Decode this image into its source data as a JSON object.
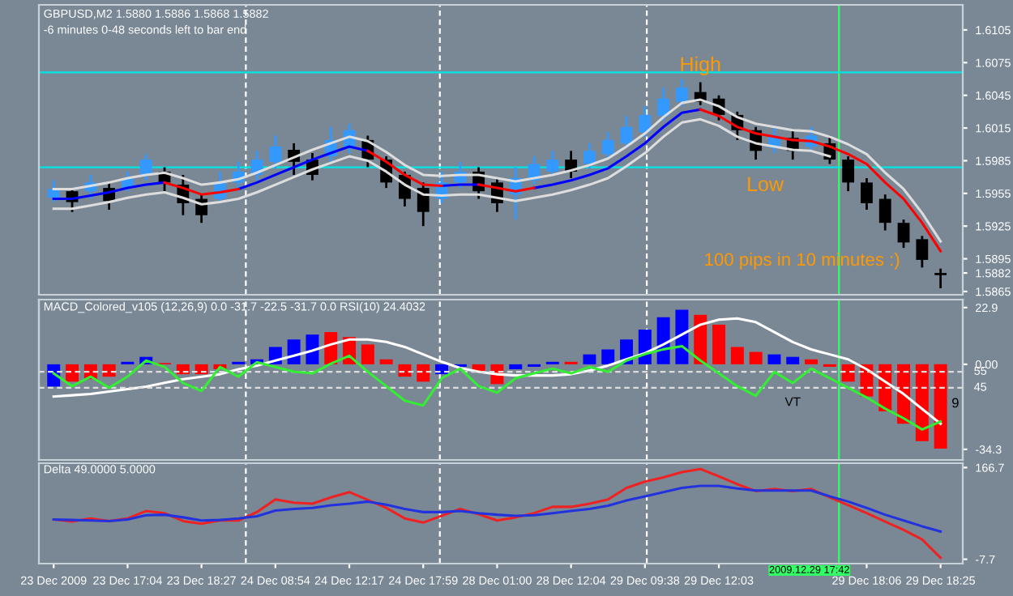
{
  "chart_data": [
    {
      "type": "candlestick",
      "title": "GBPUSD,M2 1.5880 1.5886 1.5868 1.5882",
      "subtitle": "-6 minutes 0-48 seconds left to bar end",
      "categories": [
        null,
        null,
        null,
        null,
        null,
        null,
        null,
        null,
        null,
        null,
        null,
        null,
        null,
        null,
        null,
        null,
        null,
        null,
        null,
        null,
        null,
        null,
        null,
        null,
        null,
        null,
        null,
        null,
        null,
        null,
        null,
        null,
        null,
        null,
        null,
        null,
        null,
        null,
        null,
        null,
        null,
        null,
        null,
        null,
        null,
        null,
        null,
        null,
        null
      ],
      "ohlc": [
        [
          1.5951,
          1.5967,
          1.5947,
          1.5959
        ],
        [
          1.5957,
          1.596,
          1.5938,
          1.5947
        ],
        [
          1.5957,
          1.5972,
          1.595,
          1.5965
        ],
        [
          1.596,
          1.5965,
          1.594,
          1.5948
        ],
        [
          1.596,
          1.5975,
          1.5957,
          1.5969
        ],
        [
          1.5972,
          1.5991,
          1.5967,
          1.5986
        ],
        [
          1.5975,
          1.5979,
          1.5957,
          1.5965
        ],
        [
          1.5963,
          1.5972,
          1.5935,
          1.5946
        ],
        [
          1.595,
          1.5954,
          1.5928,
          1.5935
        ],
        [
          1.595,
          1.5975,
          1.5946,
          1.5965
        ],
        [
          1.5965,
          1.5984,
          1.5957,
          1.5975
        ],
        [
          1.5972,
          1.5994,
          1.5967,
          1.5986
        ],
        [
          1.5984,
          1.6008,
          1.5978,
          1.5998
        ],
        [
          1.5995,
          1.6001,
          1.5972,
          1.5984
        ],
        [
          1.5986,
          1.5992,
          1.5967,
          1.5972
        ],
        [
          1.5989,
          1.6016,
          1.5984,
          1.6004
        ],
        [
          1.5998,
          1.6019,
          1.5992,
          1.6013
        ],
        [
          1.6004,
          1.6008,
          1.5979,
          1.5986
        ],
        [
          1.5986,
          1.5989,
          1.596,
          1.5965
        ],
        [
          1.5972,
          1.5975,
          1.5943,
          1.595
        ],
        [
          1.596,
          1.5965,
          1.5925,
          1.5938
        ],
        [
          1.595,
          1.5975,
          1.5946,
          1.5965
        ],
        [
          1.5965,
          1.5984,
          1.596,
          1.5975
        ],
        [
          1.5975,
          1.5979,
          1.595,
          1.5957
        ],
        [
          1.5965,
          1.5969,
          1.5938,
          1.5946
        ],
        [
          1.5954,
          1.5979,
          1.5931,
          1.5969
        ],
        [
          1.5967,
          1.5989,
          1.5963,
          1.5982
        ],
        [
          1.5975,
          1.5994,
          1.5972,
          1.5986
        ],
        [
          1.5986,
          1.5994,
          1.5969,
          1.5975
        ],
        [
          1.5982,
          1.6001,
          1.5978,
          1.5994
        ],
        [
          1.5991,
          1.6011,
          1.5986,
          1.6004
        ],
        [
          1.6001,
          1.6026,
          1.5997,
          1.6016
        ],
        [
          1.6011,
          1.6035,
          1.6007,
          1.6027
        ],
        [
          1.6026,
          1.6052,
          1.6022,
          1.6042
        ],
        [
          1.6039,
          1.606,
          1.6035,
          1.6052
        ],
        [
          1.6048,
          1.6057,
          1.6036,
          1.6039
        ],
        [
          1.6042,
          1.6045,
          1.6022,
          1.6027
        ],
        [
          1.6027,
          1.603,
          1.6004,
          1.6013
        ],
        [
          1.6013,
          1.6016,
          1.5986,
          1.5994
        ],
        [
          1.5997,
          1.6016,
          1.5992,
          1.6008
        ],
        [
          1.6006,
          1.6013,
          1.5986,
          1.5994
        ],
        [
          1.5998,
          1.6016,
          1.5994,
          1.6008
        ],
        [
          1.6001,
          1.6008,
          1.5982,
          1.5986
        ],
        [
          1.5986,
          1.5989,
          1.5957,
          1.5965
        ],
        [
          1.5965,
          1.5969,
          1.594,
          1.5946
        ],
        [
          1.595,
          1.5954,
          1.5921,
          1.5928
        ],
        [
          1.5928,
          1.5931,
          1.5905,
          1.591
        ],
        [
          1.5913,
          1.5916,
          1.5887,
          1.5894
        ],
        [
          1.588,
          1.5886,
          1.5868,
          1.5882
        ]
      ],
      "colors": [
        "#3399ff",
        "#000000",
        "#3399ff",
        "#000000",
        "#3399ff",
        "#3399ff",
        "#000000",
        "#000000",
        "#000000",
        "#3399ff",
        "#3399ff",
        "#3399ff",
        "#3399ff",
        "#000000",
        "#000000",
        "#3399ff",
        "#3399ff",
        "#000000",
        "#000000",
        "#000000",
        "#000000",
        "#3399ff",
        "#3399ff",
        "#000000",
        "#000000",
        "#3399ff",
        "#3399ff",
        "#3399ff",
        "#000000",
        "#3399ff",
        "#3399ff",
        "#3399ff",
        "#3399ff",
        "#3399ff",
        "#3399ff",
        "#000000",
        "#000000",
        "#000000",
        "#000000",
        "#3399ff",
        "#000000",
        "#3399ff",
        "#000000",
        "#000000",
        "#000000",
        "#000000",
        "#000000",
        "#000000",
        "#000000"
      ],
      "series": [
        {
          "type": "line",
          "color": "#dddddd",
          "values": [
            1.5959,
            1.5959,
            1.5962,
            1.5965,
            1.5969,
            1.5972,
            1.5974,
            1.5969,
            1.5963,
            1.5965,
            1.5968,
            1.5974,
            1.5981,
            1.5988,
            1.5995,
            1.6001,
            1.6007,
            1.6003,
            1.5993,
            1.5981,
            1.5972,
            1.5971,
            1.5972,
            1.5972,
            1.5969,
            1.5966,
            1.5969,
            1.5972,
            1.5976,
            1.5981,
            1.5987,
            1.5998,
            1.601,
            1.6025,
            1.6038,
            1.6041,
            1.6035,
            1.6025,
            1.6019,
            1.6016,
            1.6013,
            1.6012,
            1.6007,
            1.6,
            1.5991,
            1.5974,
            1.5959,
            1.5937,
            1.5911
          ]
        },
        {
          "type": "line",
          "color": "#dddddd",
          "values": [
            1.5941,
            1.5941,
            1.5944,
            1.5947,
            1.5951,
            1.5954,
            1.5956,
            1.5951,
            1.5945,
            1.5947,
            1.595,
            1.5956,
            1.5963,
            1.597,
            1.5977,
            1.5983,
            1.5989,
            1.5985,
            1.5975,
            1.5963,
            1.5954,
            1.5953,
            1.5954,
            1.5954,
            1.5951,
            1.5948,
            1.5951,
            1.5954,
            1.5958,
            1.5963,
            1.5969,
            1.598,
            1.5992,
            1.6007,
            1.602,
            1.6023,
            1.6017,
            1.6007,
            1.6001,
            1.5998,
            1.5995,
            1.5994,
            1.5989,
            null,
            null,
            null,
            null,
            null,
            null
          ]
        },
        {
          "type": "line",
          "color": "#0000ff",
          "values": [
            1.595,
            1.595,
            1.5953,
            1.5956,
            1.596,
            1.5963,
            1.5965,
            null,
            null,
            null,
            1.5959,
            1.5965,
            1.5972,
            1.5979,
            1.5986,
            1.5992,
            1.5998,
            1.5994,
            null,
            null,
            null,
            1.5962,
            1.5963,
            1.5963,
            null,
            null,
            1.596,
            1.5963,
            1.5967,
            1.5972,
            1.5978,
            1.5989,
            1.6001,
            1.6016,
            1.6029,
            1.6032,
            null,
            null,
            null,
            null,
            null,
            null,
            null,
            null,
            null,
            null,
            null,
            null,
            null
          ]
        },
        {
          "type": "line",
          "color": "#ff0000",
          "values": [
            null,
            null,
            null,
            null,
            null,
            null,
            1.5965,
            1.596,
            1.5954,
            1.5956,
            1.5959,
            null,
            null,
            null,
            null,
            null,
            null,
            1.5994,
            1.5984,
            1.5972,
            1.5963,
            1.5962,
            null,
            1.5963,
            1.596,
            1.5957,
            1.596,
            null,
            null,
            null,
            null,
            null,
            null,
            null,
            null,
            1.6032,
            1.6026,
            1.6016,
            1.601,
            1.6007,
            1.6004,
            1.6003,
            1.5998,
            1.5991,
            1.5982,
            1.5965,
            1.595,
            1.5928,
            1.5902
          ]
        }
      ],
      "ref_lines": [
        {
          "axis": "y",
          "value": 1.6066,
          "color": "#00e5e5",
          "line_style": "solid"
        },
        {
          "axis": "y",
          "value": 1.5979,
          "color": "#00e5e5",
          "line_style": "solid"
        }
      ],
      "ylim": [
        1.5862,
        1.6128
      ],
      "yticks": [
        1.6105,
        1.6075,
        1.6045,
        1.6015,
        1.5985,
        1.5955,
        1.5925,
        1.5895,
        1.5882,
        1.5865
      ],
      "tick_labels": "y",
      "annotations": [
        "High",
        "Low",
        "100 pips in 10 minutes :)"
      ]
    },
    {
      "type": "bar",
      "title": "MACD_Colored_v105 (12,26,9) 0.0 -31.7 -22.5 -31.7 0.0 RSI(10) 24.4032",
      "categories": [
        null,
        null,
        null,
        null,
        null,
        null,
        null,
        null,
        null,
        null,
        null,
        null,
        null,
        null,
        null,
        null,
        null,
        null,
        null,
        null,
        null,
        null,
        null,
        null,
        null,
        null,
        null,
        null,
        null,
        null,
        null,
        null,
        null,
        null,
        null,
        null,
        null,
        null,
        null,
        null,
        null,
        null,
        null,
        null,
        null,
        null,
        null,
        null,
        null
      ],
      "values": [
        -9,
        -7,
        -6,
        -5,
        1,
        3,
        0.5,
        -4,
        -4,
        -2,
        1,
        2,
        7,
        10,
        12,
        13,
        11,
        8,
        2,
        -5,
        -7,
        -4,
        -1,
        -3,
        -8,
        -2,
        -1,
        1,
        1,
        4,
        6,
        10,
        14,
        19,
        22,
        20,
        16,
        7,
        5,
        4,
        3,
        2,
        -1,
        -7,
        -13,
        -19,
        -24,
        -31,
        -34
      ],
      "colors": [
        "#0000ff",
        "#ff0000",
        "#ff0000",
        "#ff0000",
        "#0000ff",
        "#0000ff",
        "#ff0000",
        "#ff0000",
        "#ff0000",
        "#ff0000",
        "#0000ff",
        "#0000ff",
        "#0000ff",
        "#0000ff",
        "#0000ff",
        "#ff0000",
        "#ff0000",
        "#ff0000",
        "#ff0000",
        "#ff0000",
        "#ff0000",
        "#0000ff",
        "#0000ff",
        "#ff0000",
        "#ff0000",
        "#0000ff",
        "#0000ff",
        "#0000ff",
        "#ff0000",
        "#0000ff",
        "#0000ff",
        "#0000ff",
        "#0000ff",
        "#0000ff",
        "#0000ff",
        "#ff0000",
        "#ff0000",
        "#ff0000",
        "#ff0000",
        "#0000ff",
        "#0000ff",
        "#ff0000",
        "#ff0000",
        "#ff0000",
        "#ff0000",
        "#ff0000",
        "#ff0000",
        "#ff0000",
        "#ff0000"
      ],
      "series": [
        {
          "type": "line",
          "color": "#ffffff",
          "values": [
            -13,
            -12.5,
            -12,
            -11,
            -10,
            -9,
            -7.5,
            -6,
            -5,
            -4,
            -2,
            -0.5,
            1.5,
            3.5,
            5.5,
            8,
            10,
            10,
            9,
            7,
            4,
            1,
            -1.5,
            -3,
            -4,
            -4.5,
            -4.5,
            -4.5,
            -4,
            -2.5,
            -0.5,
            2,
            4.5,
            8,
            12,
            16,
            18,
            18.5,
            17,
            13,
            9,
            6,
            4,
            2,
            -2,
            -7,
            -12,
            -18,
            -24
          ]
        },
        {
          "type": "line",
          "color": "#33ee33",
          "axis": "y2",
          "values": [
            54,
            46,
            52,
            45,
            52,
            62,
            58,
            48,
            43,
            58,
            52,
            61,
            58,
            55,
            54,
            60,
            65,
            55,
            46,
            37,
            34,
            51,
            57,
            46,
            42,
            51,
            54,
            57,
            54,
            58,
            55,
            62,
            66,
            69,
            71,
            62,
            54,
            46,
            40,
            55,
            48,
            57,
            51,
            45,
            39,
            32,
            26,
            19,
            24
          ]
        }
      ],
      "ref_lines": [
        {
          "axis": "y2",
          "value": 55,
          "label": "55",
          "color": "#dddddd",
          "line_style": "dashed"
        },
        {
          "axis": "y2",
          "value": 45,
          "label": "45",
          "color": "#dddddd",
          "line_style": "dashed"
        }
      ],
      "ylim": [
        -38.6,
        26.1
      ],
      "y2lim": [
        0,
        100
      ],
      "yticks": [
        22.9,
        {
          "value": 0,
          "label": "0.00"
        },
        -34.3
      ],
      "tick_labels": "y",
      "annotations": [
        "9",
        "VT"
      ]
    },
    {
      "type": "line",
      "title": "Delta 49.0000 5.0000",
      "categories": [
        "23 Dec 2009",
        null,
        null,
        null,
        "23 Dec 17:04",
        null,
        null,
        null,
        "23 Dec 18:27",
        null,
        null,
        null,
        "24 Dec 08:54",
        null,
        null,
        null,
        "24 Dec 12:17",
        null,
        null,
        null,
        "24 Dec 17:59",
        null,
        null,
        null,
        "28 Dec 01:00",
        null,
        null,
        null,
        "28 Dec 12:04",
        null,
        null,
        null,
        "29 Dec 09:38",
        null,
        null,
        null,
        "29 Dec 12:03",
        null,
        null,
        null,
        null,
        null,
        null,
        null,
        "29 Dec 18:06",
        null,
        null,
        null,
        "29 Dec 18:25"
      ],
      "series": [
        {
          "type": "line",
          "color": "#ee2222",
          "values": [
            68,
            64,
            70,
            65,
            70,
            84,
            80,
            65,
            60,
            66,
            66,
            82,
            106,
            100,
            98,
            110,
            120,
            105,
            90,
            70,
            62,
            75,
            88,
            78,
            66,
            72,
            80,
            92,
            92,
            98,
            106,
            128,
            140,
            148,
            158,
            164,
            150,
            135,
            122,
            126,
            122,
            126,
            110,
            95,
            80,
            64,
            48,
            30,
            -5
          ]
        },
        {
          "type": "line",
          "color": "#2233dd",
          "values": [
            68,
            67,
            66,
            65,
            68,
            76,
            77,
            72,
            66,
            67,
            70,
            74,
            85,
            88,
            90,
            95,
            98,
            102,
            96,
            88,
            82,
            82,
            84,
            80,
            77,
            75,
            76,
            80,
            84,
            88,
            94,
            104,
            112,
            120,
            128,
            132,
            132,
            127,
            123,
            123,
            123,
            123,
            112,
            102,
            90,
            77,
            66,
            55,
            45
          ]
        }
      ],
      "ylim": [
        -16,
        175
      ],
      "yticks": [
        166.7,
        -7.7
      ],
      "annotations": [
        "2009.12.29 17:42"
      ]
    }
  ]
}
